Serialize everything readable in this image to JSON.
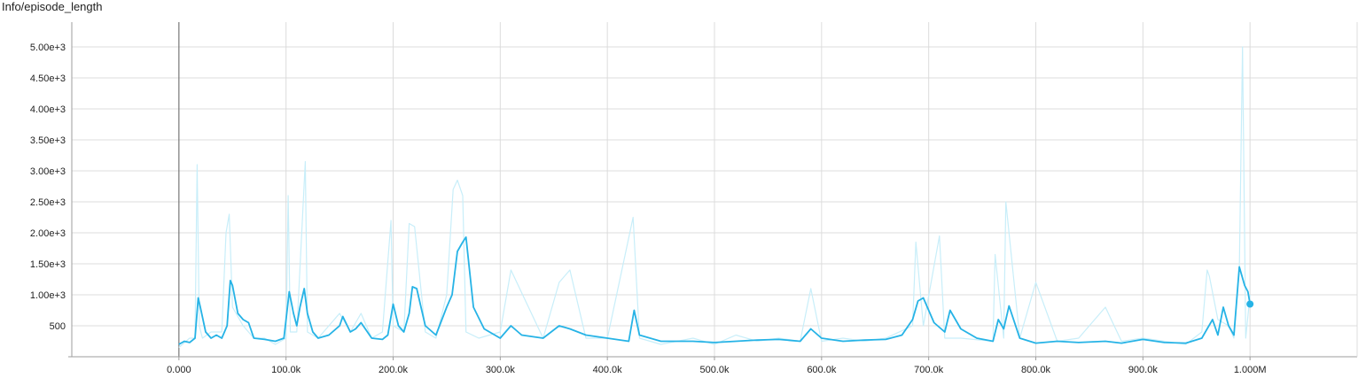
{
  "chart_data": {
    "type": "line",
    "title": "Info/episode_length",
    "xlabel": "",
    "ylabel": "",
    "xlim": [
      -100000,
      1100000
    ],
    "ylim": [
      0,
      5400
    ],
    "grid": true,
    "legend": "none",
    "x_ticks": [
      0,
      100000,
      200000,
      300000,
      400000,
      500000,
      600000,
      700000,
      800000,
      900000,
      1000000
    ],
    "x_tick_labels": [
      "0.000",
      "100.0k",
      "200.0k",
      "300.0k",
      "400.0k",
      "500.0k",
      "600.0k",
      "700.0k",
      "800.0k",
      "900.0k",
      "1.000M"
    ],
    "y_ticks": [
      500,
      1000,
      1500,
      2000,
      2500,
      3000,
      3500,
      4000,
      4500,
      5000
    ],
    "y_tick_labels": [
      "500",
      "1.00e+3",
      "1.50e+3",
      "2.00e+3",
      "2.50e+3",
      "3.00e+3",
      "3.50e+3",
      "4.00e+3",
      "4.50e+3",
      "5.00e+3"
    ],
    "colors": {
      "smoothed": "#26b3e6",
      "raw": "#c8eef9",
      "grid": "#dcdcdc",
      "axis": "#9e9e9e",
      "zero_line": "#777777"
    },
    "series": [
      {
        "role": "smoothed",
        "x": [
          0,
          5000,
          10000,
          15000,
          18000,
          20000,
          25000,
          30000,
          35000,
          40000,
          45000,
          48000,
          50000,
          55000,
          60000,
          65000,
          70000,
          80000,
          90000,
          98000,
          103000,
          107000,
          110000,
          113000,
          117000,
          120000,
          125000,
          130000,
          140000,
          150000,
          153000,
          160000,
          165000,
          170000,
          180000,
          190000,
          195000,
          200000,
          205000,
          210000,
          215000,
          218000,
          222000,
          230000,
          240000,
          250000,
          255000,
          260000,
          265000,
          268000,
          275000,
          285000,
          300000,
          310000,
          320000,
          340000,
          355000,
          365000,
          380000,
          400000,
          420000,
          425000,
          430000,
          450000,
          480000,
          500000,
          520000,
          540000,
          560000,
          580000,
          590000,
          600000,
          620000,
          640000,
          660000,
          675000,
          685000,
          690000,
          695000,
          705000,
          715000,
          720000,
          730000,
          745000,
          760000,
          765000,
          770000,
          775000,
          785000,
          800000,
          820000,
          840000,
          865000,
          880000,
          900000,
          920000,
          940000,
          955000,
          960000,
          965000,
          970000,
          975000,
          980000,
          985000,
          990000,
          995000,
          998000,
          1000000
        ],
        "y": [
          200,
          250,
          230,
          300,
          950,
          800,
          400,
          300,
          350,
          300,
          500,
          1230,
          1150,
          700,
          600,
          550,
          300,
          280,
          250,
          300,
          1050,
          700,
          500,
          800,
          1100,
          700,
          400,
          300,
          350,
          500,
          650,
          400,
          450,
          550,
          300,
          280,
          350,
          850,
          500,
          400,
          700,
          1130,
          1100,
          500,
          350,
          800,
          1000,
          1700,
          1850,
          1930,
          800,
          450,
          300,
          500,
          350,
          300,
          500,
          450,
          350,
          300,
          250,
          750,
          350,
          250,
          250,
          230,
          250,
          270,
          280,
          250,
          450,
          300,
          250,
          270,
          280,
          350,
          600,
          900,
          950,
          550,
          400,
          750,
          450,
          300,
          250,
          600,
          450,
          820,
          300,
          220,
          250,
          230,
          250,
          220,
          280,
          230,
          220,
          300,
          450,
          600,
          350,
          800,
          500,
          350,
          1450,
          1150,
          1050,
          850
        ]
      },
      {
        "role": "raw",
        "x": [
          0,
          10000,
          15000,
          17000,
          19000,
          22000,
          30000,
          40000,
          44000,
          47000,
          50000,
          60000,
          70000,
          80000,
          90000,
          100000,
          102000,
          104000,
          110000,
          118000,
          120000,
          130000,
          140000,
          150000,
          160000,
          170000,
          180000,
          190000,
          198000,
          200000,
          210000,
          215000,
          220000,
          230000,
          240000,
          250000,
          256000,
          260000,
          265000,
          268000,
          280000,
          300000,
          310000,
          340000,
          355000,
          365000,
          380000,
          400000,
          424000,
          430000,
          450000,
          480000,
          500000,
          520000,
          540000,
          560000,
          580000,
          590000,
          600000,
          620000,
          640000,
          660000,
          685000,
          688000,
          695000,
          710000,
          715000,
          730000,
          760000,
          762000,
          770000,
          772000,
          785000,
          800000,
          820000,
          840000,
          865000,
          880000,
          900000,
          920000,
          940000,
          955000,
          960000,
          962000,
          970000,
          980000,
          985000,
          990000,
          993000,
          996000,
          1000000
        ],
        "y": [
          150,
          300,
          300,
          3100,
          500,
          300,
          400,
          400,
          2000,
          2300,
          800,
          500,
          300,
          300,
          200,
          300,
          2600,
          400,
          400,
          3150,
          400,
          300,
          500,
          700,
          400,
          700,
          300,
          400,
          2200,
          500,
          400,
          2150,
          2100,
          400,
          300,
          1000,
          2700,
          2850,
          2600,
          400,
          300,
          400,
          1400,
          300,
          1200,
          1400,
          300,
          300,
          2250,
          300,
          200,
          300,
          200,
          350,
          250,
          300,
          250,
          1100,
          250,
          300,
          250,
          300,
          500,
          1850,
          500,
          1950,
          300,
          300,
          250,
          1650,
          300,
          2500,
          300,
          1200,
          250,
          300,
          800,
          250,
          300,
          250,
          200,
          400,
          1400,
          1300,
          600,
          500,
          300,
          1400,
          5000,
          300,
          1000
        ]
      }
    ]
  }
}
